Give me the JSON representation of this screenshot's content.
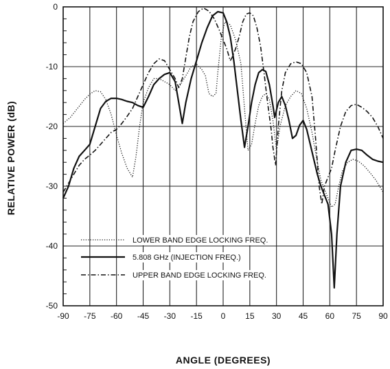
{
  "chart_data": {
    "type": "line",
    "xlabel": "ANGLE (DEGREES)",
    "ylabel": "RELATIVE POWER (dB)",
    "xlim": [
      -90,
      90
    ],
    "ylim": [
      -50,
      0
    ],
    "xticks": [
      -90,
      -75,
      -60,
      -45,
      -30,
      -15,
      0,
      15,
      30,
      45,
      60,
      75,
      90
    ],
    "yticks": [
      0,
      -10,
      -20,
      -30,
      -40,
      -50
    ],
    "grid": true,
    "legend_position": "bottom-left",
    "series": [
      {
        "name": "LOWER BAND EDGE LOCKING FREQ.",
        "style": "dotted",
        "color": "#111111",
        "points": [
          [
            -90,
            -19.5
          ],
          [
            -86,
            -18.5
          ],
          [
            -82,
            -17
          ],
          [
            -78,
            -15.5
          ],
          [
            -75,
            -14.6
          ],
          [
            -72,
            -14
          ],
          [
            -69,
            -14.2
          ],
          [
            -66,
            -15.5
          ],
          [
            -63,
            -18
          ],
          [
            -60,
            -21.5
          ],
          [
            -57,
            -24.5
          ],
          [
            -54,
            -27
          ],
          [
            -51,
            -28.5
          ],
          [
            -49,
            -25
          ],
          [
            -47,
            -20
          ],
          [
            -45,
            -16
          ],
          [
            -42,
            -13.5
          ],
          [
            -39,
            -12
          ],
          [
            -36,
            -12
          ],
          [
            -33,
            -12.5
          ],
          [
            -30,
            -13
          ],
          [
            -27,
            -14
          ],
          [
            -24,
            -13
          ],
          [
            -21,
            -11.5
          ],
          [
            -18,
            -10
          ],
          [
            -15,
            -9.6
          ],
          [
            -12,
            -10.5
          ],
          [
            -10,
            -11.5
          ],
          [
            -8,
            -14.5
          ],
          [
            -6,
            -15
          ],
          [
            -4,
            -14.5
          ],
          [
            -3,
            -11
          ],
          [
            -1,
            -5
          ],
          [
            1,
            -2.5
          ],
          [
            4,
            -3
          ],
          [
            7,
            -5.5
          ],
          [
            10,
            -9.5
          ],
          [
            12,
            -17
          ],
          [
            14,
            -24
          ],
          [
            16,
            -23
          ],
          [
            18,
            -19.5
          ],
          [
            20,
            -16.5
          ],
          [
            22,
            -15
          ],
          [
            24,
            -14.5
          ],
          [
            26,
            -15.5
          ],
          [
            28,
            -19
          ],
          [
            30,
            -24
          ],
          [
            32,
            -20
          ],
          [
            35,
            -16.5
          ],
          [
            38,
            -15
          ],
          [
            41,
            -14
          ],
          [
            44,
            -14.5
          ],
          [
            47,
            -17
          ],
          [
            50,
            -21
          ],
          [
            53,
            -26
          ],
          [
            55,
            -29
          ],
          [
            57,
            -30.5
          ],
          [
            59,
            -32
          ],
          [
            61,
            -33.5
          ],
          [
            63,
            -33
          ],
          [
            65,
            -30
          ],
          [
            67,
            -27.5
          ],
          [
            70,
            -26
          ],
          [
            73,
            -25.5
          ],
          [
            76,
            -25.8
          ],
          [
            79,
            -26.5
          ],
          [
            82,
            -27.5
          ],
          [
            86,
            -29
          ],
          [
            90,
            -31
          ]
        ]
      },
      {
        "name": "5.808 GHz (INJECTION FREQ.)",
        "style": "solid",
        "color": "#111111",
        "points": [
          [
            -90,
            -32
          ],
          [
            -87,
            -30
          ],
          [
            -84,
            -27
          ],
          [
            -81,
            -25
          ],
          [
            -78,
            -24
          ],
          [
            -75,
            -23
          ],
          [
            -72,
            -20
          ],
          [
            -69,
            -17
          ],
          [
            -66,
            -15.8
          ],
          [
            -63,
            -15.3
          ],
          [
            -60,
            -15.3
          ],
          [
            -57,
            -15.5
          ],
          [
            -54,
            -15.8
          ],
          [
            -51,
            -16
          ],
          [
            -48,
            -16.5
          ],
          [
            -45,
            -16.8
          ],
          [
            -42,
            -15
          ],
          [
            -39,
            -13
          ],
          [
            -36,
            -12
          ],
          [
            -33,
            -11.3
          ],
          [
            -30,
            -11
          ],
          [
            -27,
            -12.5
          ],
          [
            -25,
            -16
          ],
          [
            -23,
            -19.5
          ],
          [
            -21,
            -16
          ],
          [
            -18,
            -12
          ],
          [
            -15,
            -9
          ],
          [
            -12,
            -6
          ],
          [
            -9,
            -3.5
          ],
          [
            -6,
            -1.5
          ],
          [
            -3,
            -0.8
          ],
          [
            0,
            -1
          ],
          [
            2,
            -2.5
          ],
          [
            4,
            -5
          ],
          [
            6,
            -9
          ],
          [
            8,
            -14
          ],
          [
            10,
            -19
          ],
          [
            12,
            -23.5
          ],
          [
            14,
            -20
          ],
          [
            16,
            -16
          ],
          [
            18,
            -13
          ],
          [
            20,
            -11
          ],
          [
            22,
            -10.5
          ],
          [
            24,
            -10.8
          ],
          [
            26,
            -13
          ],
          [
            28,
            -16.5
          ],
          [
            29,
            -18.5
          ],
          [
            31,
            -16
          ],
          [
            33,
            -15
          ],
          [
            35,
            -16.5
          ],
          [
            37,
            -19
          ],
          [
            39,
            -22
          ],
          [
            41,
            -21.5
          ],
          [
            43,
            -19.8
          ],
          [
            45,
            -19
          ],
          [
            47,
            -20.5
          ],
          [
            49,
            -23
          ],
          [
            51,
            -25.5
          ],
          [
            53,
            -28
          ],
          [
            55,
            -30
          ],
          [
            57,
            -31.5
          ],
          [
            59,
            -33
          ],
          [
            61,
            -38
          ],
          [
            62.5,
            -47
          ],
          [
            64,
            -38
          ],
          [
            66,
            -30
          ],
          [
            69,
            -26
          ],
          [
            72,
            -24
          ],
          [
            75,
            -23.8
          ],
          [
            78,
            -24
          ],
          [
            81,
            -24.8
          ],
          [
            84,
            -25.5
          ],
          [
            87,
            -25.8
          ],
          [
            90,
            -26
          ]
        ]
      },
      {
        "name": "UPPER BAND EDGE LOCKING FREQ.",
        "style": "dash-dot",
        "color": "#111111",
        "points": [
          [
            -90,
            -31
          ],
          [
            -87,
            -29.5
          ],
          [
            -84,
            -28
          ],
          [
            -81,
            -26.5
          ],
          [
            -78,
            -25.5
          ],
          [
            -75,
            -24.8
          ],
          [
            -72,
            -24
          ],
          [
            -69,
            -23
          ],
          [
            -66,
            -22
          ],
          [
            -63,
            -21
          ],
          [
            -60,
            -20.5
          ],
          [
            -57,
            -19.5
          ],
          [
            -54,
            -18.3
          ],
          [
            -51,
            -17
          ],
          [
            -48,
            -15
          ],
          [
            -45,
            -13
          ],
          [
            -42,
            -11
          ],
          [
            -39,
            -9.5
          ],
          [
            -36,
            -8.7
          ],
          [
            -33,
            -9
          ],
          [
            -30,
            -10.5
          ],
          [
            -27,
            -12
          ],
          [
            -25,
            -13.5
          ],
          [
            -23,
            -12
          ],
          [
            -21,
            -8.5
          ],
          [
            -19,
            -5
          ],
          [
            -17,
            -2.5
          ],
          [
            -14,
            -0.8
          ],
          [
            -11,
            -0.2
          ],
          [
            -8,
            -0.7
          ],
          [
            -5,
            -2
          ],
          [
            -2,
            -4
          ],
          [
            0,
            -5.5
          ],
          [
            2,
            -7
          ],
          [
            4,
            -9
          ],
          [
            5,
            -8.5
          ],
          [
            7,
            -7
          ],
          [
            9,
            -5
          ],
          [
            11,
            -2.5
          ],
          [
            13,
            -1.2
          ],
          [
            15,
            -1
          ],
          [
            17,
            -1.5
          ],
          [
            19,
            -3.5
          ],
          [
            21,
            -6.5
          ],
          [
            23,
            -11
          ],
          [
            25,
            -16
          ],
          [
            27,
            -20.5
          ],
          [
            28,
            -23.5
          ],
          [
            29.5,
            -26.5
          ],
          [
            31,
            -20
          ],
          [
            33,
            -14
          ],
          [
            35,
            -11
          ],
          [
            38,
            -9.5
          ],
          [
            41,
            -9.2
          ],
          [
            44,
            -9.5
          ],
          [
            47,
            -11
          ],
          [
            50,
            -15
          ],
          [
            52,
            -22
          ],
          [
            54,
            -30
          ],
          [
            55.5,
            -33
          ],
          [
            57,
            -30
          ],
          [
            59,
            -28.5
          ],
          [
            61,
            -27
          ],
          [
            63,
            -24
          ],
          [
            66,
            -20
          ],
          [
            69,
            -17.5
          ],
          [
            72,
            -16.5
          ],
          [
            75,
            -16.3
          ],
          [
            78,
            -16.8
          ],
          [
            81,
            -17.5
          ],
          [
            84,
            -18.5
          ],
          [
            87,
            -20
          ],
          [
            90,
            -22
          ]
        ]
      }
    ]
  }
}
